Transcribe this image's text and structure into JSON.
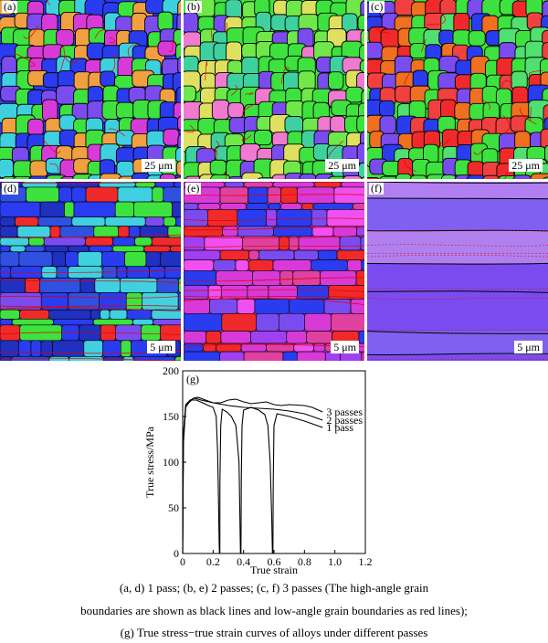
{
  "panels": [
    {
      "label": "(a)",
      "scale": "25 μm"
    },
    {
      "label": "(b)",
      "scale": "25 μm"
    },
    {
      "label": "(c)",
      "scale": "25 μm"
    },
    {
      "label": "(d)",
      "scale": "5 μm"
    },
    {
      "label": "(e)",
      "scale": "5 μm"
    },
    {
      "label": "(f)",
      "scale": "5 μm"
    }
  ],
  "colors": {
    "ebsd_blue": "#2a3cf0",
    "ebsd_green": "#3ee23e",
    "ebsd_red": "#f02a2a",
    "ebsd_magenta": "#d83ad8",
    "ebsd_violet": "#7a4cf0",
    "hagb": "#000000",
    "lagb": "#e00000"
  },
  "caption": {
    "line1": "(a, d) 1 pass; (b, e) 2 passes; (c, f) 3 passes (The high-angle grain",
    "line2": "boundaries are shown as black lines and low-angle grain boundaries as red lines);",
    "line3": "(g) True stress−true strain curves of alloys under different passes"
  },
  "chart_data": {
    "type": "line",
    "panel_label": "(g)",
    "xlabel": "True strain",
    "ylabel": "True stress/MPa",
    "xlim": [
      0,
      1.2
    ],
    "ylim": [
      0,
      200
    ],
    "xticks": [
      "0",
      "0.2",
      "0.4",
      "0.6",
      "0.8",
      "1.0",
      "1.2"
    ],
    "yticks": [
      "0",
      "50",
      "100",
      "150",
      "200"
    ],
    "grid": false,
    "series": [
      {
        "name": "1 pass",
        "segments": [
          [
            [
              0,
              0
            ],
            [
              0.005,
              120
            ],
            [
              0.02,
              160
            ],
            [
              0.04,
              166
            ],
            [
              0.06,
              168
            ],
            [
              0.09,
              168
            ],
            [
              0.13,
              165
            ],
            [
              0.17,
              162
            ],
            [
              0.2,
              160
            ],
            [
              0.22,
              150
            ],
            [
              0.23,
              110
            ],
            [
              0.235,
              60
            ],
            [
              0.24,
              10
            ],
            [
              0.242,
              0
            ]
          ],
          [
            [
              0.244,
              0
            ],
            [
              0.245,
              80
            ],
            [
              0.25,
              140
            ],
            [
              0.26,
              158
            ],
            [
              0.29,
              155
            ],
            [
              0.32,
              150
            ],
            [
              0.35,
              140
            ],
            [
              0.37,
              100
            ],
            [
              0.375,
              50
            ],
            [
              0.38,
              0
            ]
          ],
          [
            [
              0.383,
              0
            ],
            [
              0.385,
              80
            ],
            [
              0.39,
              140
            ],
            [
              0.4,
              157
            ],
            [
              0.45,
              160
            ],
            [
              0.5,
              157
            ],
            [
              0.54,
              152
            ],
            [
              0.56,
              140
            ],
            [
              0.575,
              100
            ],
            [
              0.585,
              40
            ],
            [
              0.59,
              0
            ]
          ],
          [
            [
              0.593,
              0
            ],
            [
              0.595,
              80
            ],
            [
              0.6,
              140
            ],
            [
              0.62,
              153
            ],
            [
              0.7,
              150
            ],
            [
              0.8,
              145
            ],
            [
              0.92,
              138
            ]
          ]
        ]
      },
      {
        "name": "2 passes",
        "segments": [
          [
            [
              0,
              0
            ],
            [
              0.005,
              130
            ],
            [
              0.02,
              163
            ],
            [
              0.05,
              168
            ],
            [
              0.08,
              170
            ],
            [
              0.12,
              168
            ],
            [
              0.2,
              165
            ],
            [
              0.3,
              162
            ],
            [
              0.4,
              160
            ],
            [
              0.5,
              159
            ],
            [
              0.6,
              158
            ],
            [
              0.7,
              156
            ],
            [
              0.8,
              153
            ],
            [
              0.92,
              146
            ]
          ]
        ]
      },
      {
        "name": "3 passes",
        "segments": [
          [
            [
              0,
              0
            ],
            [
              0.005,
              130
            ],
            [
              0.02,
              160
            ],
            [
              0.04,
              165
            ],
            [
              0.07,
              170
            ],
            [
              0.1,
              171
            ],
            [
              0.15,
              168
            ],
            [
              0.2,
              165
            ],
            [
              0.25,
              165
            ],
            [
              0.3,
              168
            ],
            [
              0.35,
              169
            ],
            [
              0.4,
              166
            ],
            [
              0.45,
              164
            ],
            [
              0.5,
              165
            ],
            [
              0.55,
              166
            ],
            [
              0.6,
              163
            ],
            [
              0.65,
              162
            ],
            [
              0.7,
              163
            ],
            [
              0.8,
              162
            ],
            [
              0.85,
              160
            ],
            [
              0.92,
              155
            ]
          ]
        ]
      }
    ]
  }
}
